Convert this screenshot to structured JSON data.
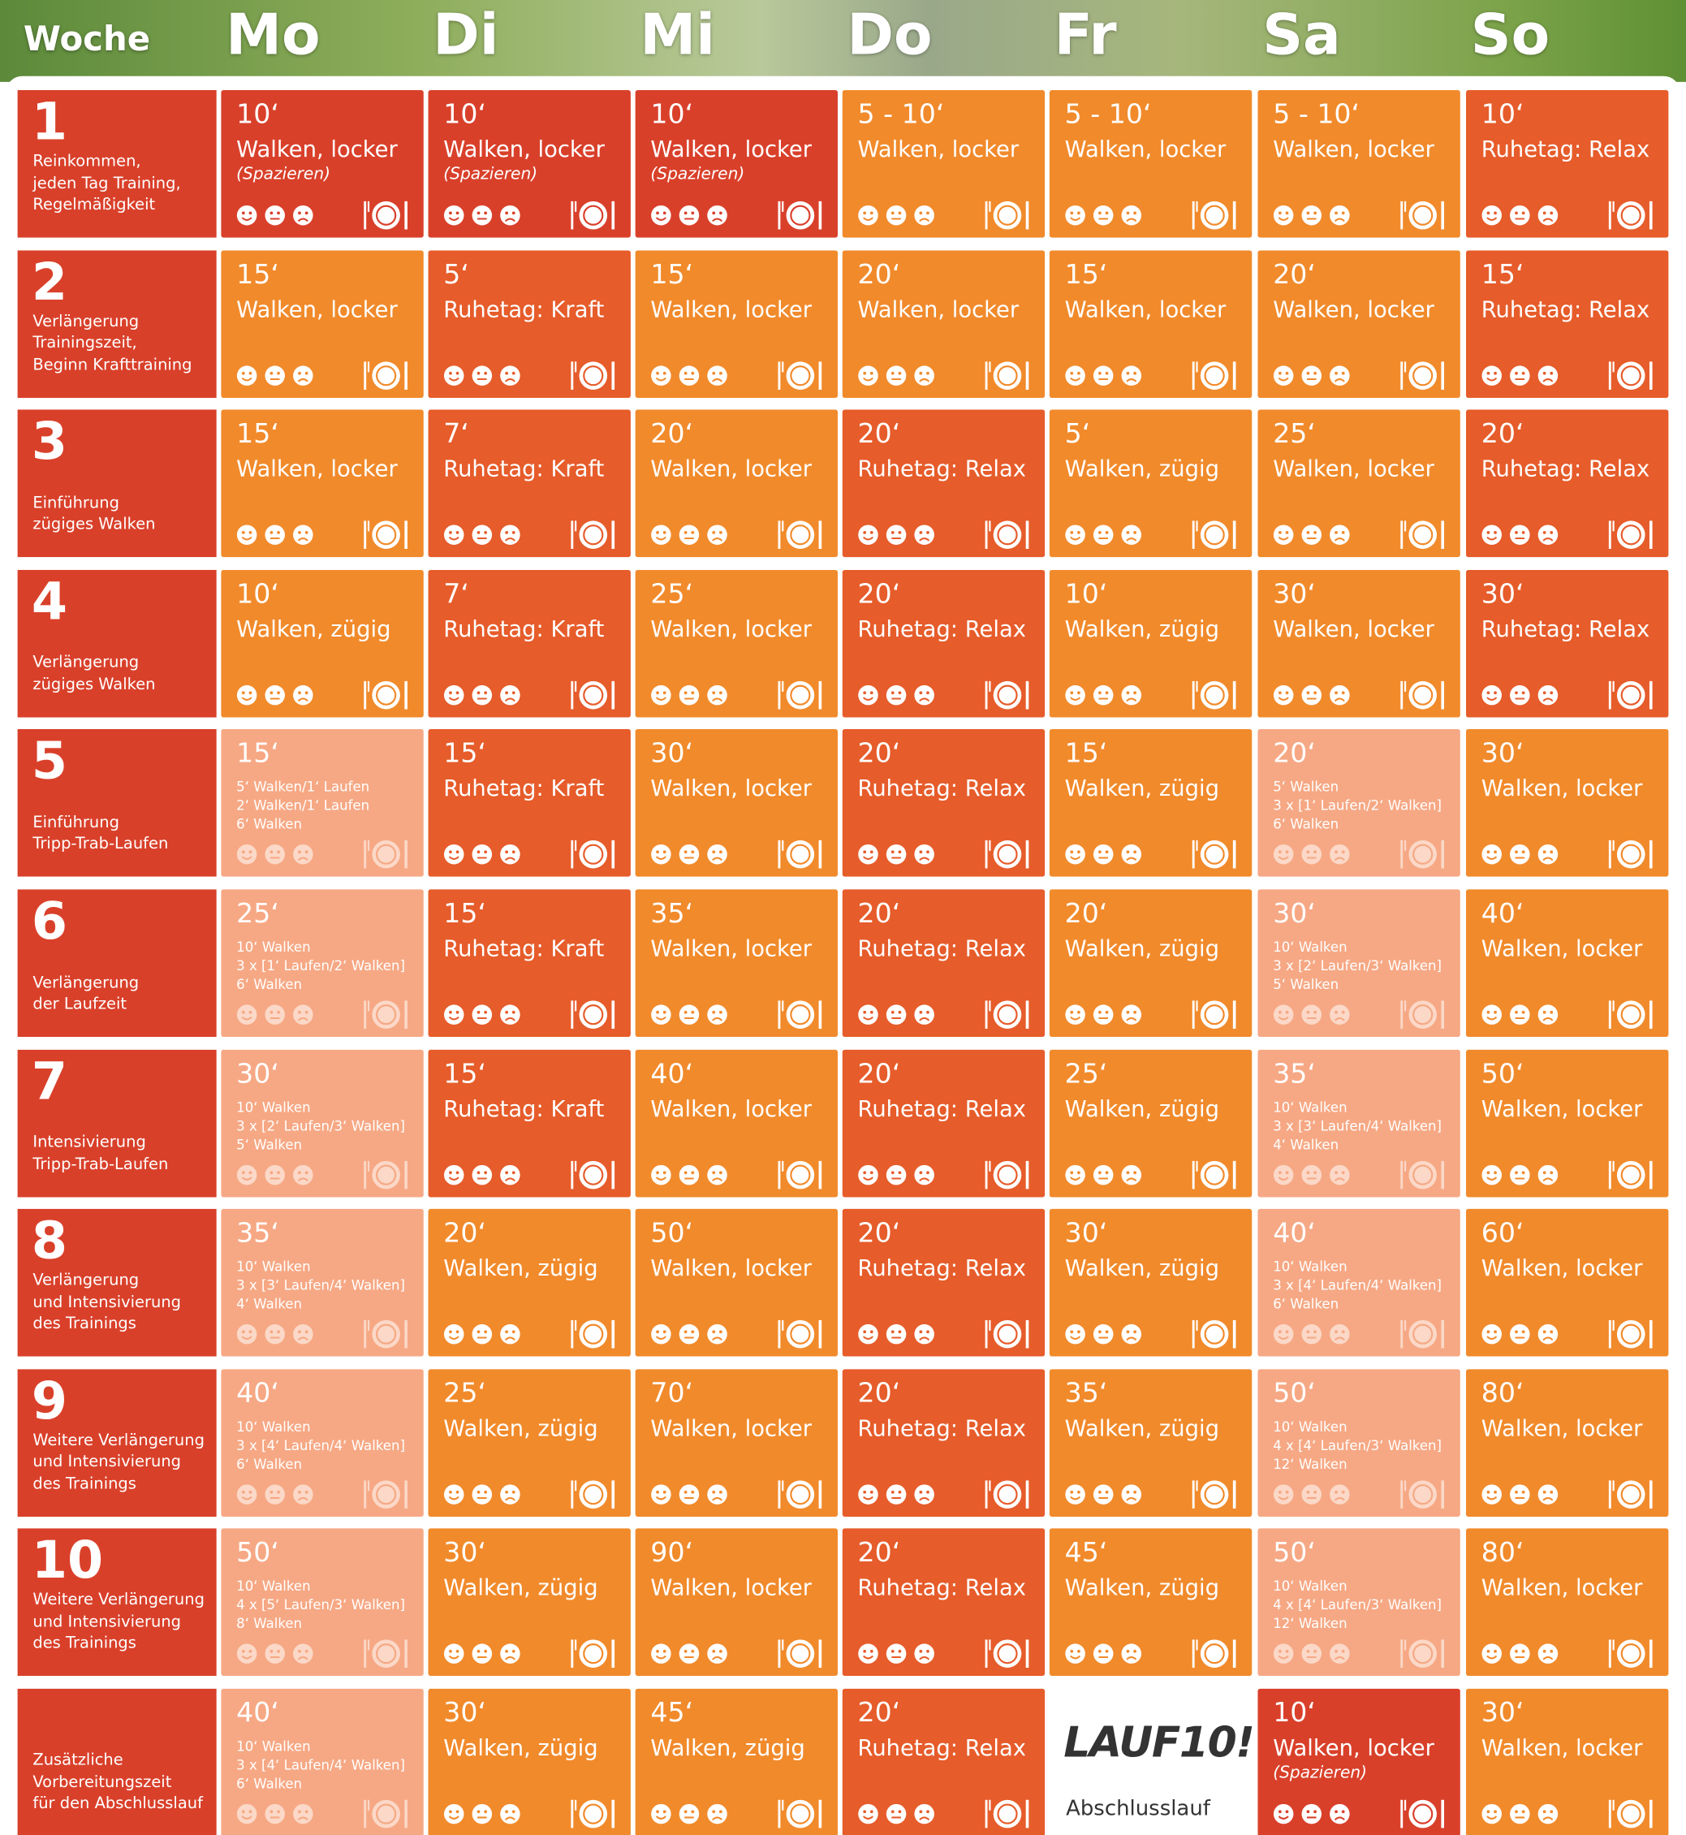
{
  "header": {
    "week_label": "Woche",
    "days": [
      "Mo",
      "Di",
      "Mi",
      "Do",
      "Fr",
      "Sa",
      "So"
    ]
  },
  "weeks": [
    {
      "number": "1",
      "description": [
        "Reinkommen,",
        "jeden Tag Training,",
        "Regelmäßigkeit"
      ],
      "days": [
        {
          "time": "10‘",
          "activity": "Walken, locker",
          "note": "(Spazieren)",
          "color": "#d9402a"
        },
        {
          "time": "10‘",
          "activity": "Walken, locker",
          "note": "(Spazieren)",
          "color": "#d9402a"
        },
        {
          "time": "10‘",
          "activity": "Walken, locker",
          "note": "(Spazieren)",
          "color": "#d9402a"
        },
        {
          "time": "5 - 10‘",
          "activity": "Walken, locker",
          "color": "#f18a2b"
        },
        {
          "time": "5 - 10‘",
          "activity": "Walken, locker",
          "color": "#f18a2b"
        },
        {
          "time": "5 - 10‘",
          "activity": "Walken, locker",
          "color": "#f18a2b"
        },
        {
          "time": "10‘",
          "activity": "Ruhetag: Relax",
          "color": "#e65c2a"
        }
      ]
    },
    {
      "number": "2",
      "description": [
        "Verlängerung",
        "Trainingszeit,",
        "Beginn Krafttraining"
      ],
      "days": [
        {
          "time": "15‘",
          "activity": "Walken, locker",
          "color": "#f18a2b"
        },
        {
          "time": "5‘",
          "activity": "Ruhetag: Kraft",
          "color": "#e65c2a"
        },
        {
          "time": "15‘",
          "activity": "Walken, locker",
          "color": "#f18a2b"
        },
        {
          "time": "20‘",
          "activity": "Walken, locker",
          "color": "#f18a2b"
        },
        {
          "time": "15‘",
          "activity": "Walken, locker",
          "color": "#f18a2b"
        },
        {
          "time": "20‘",
          "activity": "Walken, locker",
          "color": "#f18a2b"
        },
        {
          "time": "15‘",
          "activity": "Ruhetag: Relax",
          "color": "#e65c2a"
        }
      ]
    },
    {
      "number": "3",
      "description": [
        "Einführung",
        "zügiges Walken"
      ],
      "days": [
        {
          "time": "15‘",
          "activity": "Walken, locker",
          "color": "#f18a2b"
        },
        {
          "time": "7‘",
          "activity": "Ruhetag: Kraft",
          "color": "#e65c2a"
        },
        {
          "time": "20‘",
          "activity": "Walken, locker",
          "color": "#f18a2b"
        },
        {
          "time": "20‘",
          "activity": "Ruhetag: Relax",
          "color": "#e65c2a"
        },
        {
          "time": "5‘",
          "activity": "Walken, zügig",
          "color": "#f18a2b"
        },
        {
          "time": "25‘",
          "activity": "Walken, locker",
          "color": "#f18a2b"
        },
        {
          "time": "20‘",
          "activity": "Ruhetag: Relax",
          "color": "#e65c2a"
        }
      ]
    },
    {
      "number": "4",
      "description": [
        "Verlängerung",
        "zügiges Walken"
      ],
      "days": [
        {
          "time": "10‘",
          "activity": "Walken, zügig",
          "color": "#f18a2b"
        },
        {
          "time": "7‘",
          "activity": "Ruhetag: Kraft",
          "color": "#e65c2a"
        },
        {
          "time": "25‘",
          "activity": "Walken, locker",
          "color": "#f18a2b"
        },
        {
          "time": "20‘",
          "activity": "Ruhetag: Relax",
          "color": "#e65c2a"
        },
        {
          "time": "10‘",
          "activity": "Walken, zügig",
          "color": "#f18a2b"
        },
        {
          "time": "30‘",
          "activity": "Walken, locker",
          "color": "#f18a2b"
        },
        {
          "time": "30‘",
          "activity": "Ruhetag: Relax",
          "color": "#e65c2a"
        }
      ]
    },
    {
      "number": "5",
      "description": [
        "Einführung",
        "Tripp-Trab-Laufen"
      ],
      "days": [
        {
          "time": "15‘",
          "details": [
            "5‘ Walken/1‘ Laufen",
            "2‘ Walken/1‘ Laufen",
            "6‘ Walken"
          ],
          "color": "#f6a884"
        },
        {
          "time": "15‘",
          "activity": "Ruhetag: Kraft",
          "color": "#e65c2a"
        },
        {
          "time": "30‘",
          "activity": "Walken, locker",
          "color": "#f18a2b"
        },
        {
          "time": "20‘",
          "activity": "Ruhetag: Relax",
          "color": "#e65c2a"
        },
        {
          "time": "15‘",
          "activity": "Walken, zügig",
          "color": "#f18a2b"
        },
        {
          "time": "20‘",
          "details": [
            "5‘ Walken",
            "3 x [1‘ Laufen/2‘ Walken]",
            "6‘ Walken"
          ],
          "color": "#f6a884"
        },
        {
          "time": "30‘",
          "activity": "Walken, locker",
          "color": "#f18a2b"
        }
      ]
    },
    {
      "number": "6",
      "description": [
        "Verlängerung",
        "der Laufzeit"
      ],
      "days": [
        {
          "time": "25‘",
          "details": [
            "10‘ Walken",
            "3 x [1‘ Laufen/2‘ Walken]",
            "6‘ Walken"
          ],
          "color": "#f6a884"
        },
        {
          "time": "15‘",
          "activity": "Ruhetag: Kraft",
          "color": "#e65c2a"
        },
        {
          "time": "35‘",
          "activity": "Walken, locker",
          "color": "#f18a2b"
        },
        {
          "time": "20‘",
          "activity": "Ruhetag: Relax",
          "color": "#e65c2a"
        },
        {
          "time": "20‘",
          "activity": "Walken, zügig",
          "color": "#f18a2b"
        },
        {
          "time": "30‘",
          "details": [
            "10‘ Walken",
            "3 x [2‘ Laufen/3‘ Walken]",
            "5‘ Walken"
          ],
          "color": "#f6a884"
        },
        {
          "time": "40‘",
          "activity": "Walken, locker",
          "color": "#f18a2b"
        }
      ]
    },
    {
      "number": "7",
      "description": [
        "Intensivierung",
        "Tripp-Trab-Laufen"
      ],
      "days": [
        {
          "time": "30‘",
          "details": [
            "10‘ Walken",
            "3 x [2‘ Laufen/3‘ Walken]",
            "5‘ Walken"
          ],
          "color": "#f6a884"
        },
        {
          "time": "15‘",
          "activity": "Ruhetag: Kraft",
          "color": "#e65c2a"
        },
        {
          "time": "40‘",
          "activity": "Walken, locker",
          "color": "#f18a2b"
        },
        {
          "time": "20‘",
          "activity": "Ruhetag: Relax",
          "color": "#e65c2a"
        },
        {
          "time": "25‘",
          "activity": "Walken, zügig",
          "color": "#f18a2b"
        },
        {
          "time": "35‘",
          "details": [
            "10‘ Walken",
            "3 x [3‘ Laufen/4‘ Walken]",
            "4‘ Walken"
          ],
          "color": "#f6a884"
        },
        {
          "time": "50‘",
          "activity": "Walken, locker",
          "color": "#f18a2b"
        }
      ]
    },
    {
      "number": "8",
      "description": [
        "Verlängerung",
        "und Intensivierung",
        "des Trainings"
      ],
      "days": [
        {
          "time": "35‘",
          "details": [
            "10‘ Walken",
            "3 x [3‘ Laufen/4‘ Walken]",
            "4‘ Walken"
          ],
          "color": "#f6a884"
        },
        {
          "time": "20‘",
          "activity": "Walken, zügig",
          "color": "#f18a2b"
        },
        {
          "time": "50‘",
          "activity": "Walken, locker",
          "color": "#f18a2b"
        },
        {
          "time": "20‘",
          "activity": "Ruhetag: Relax",
          "color": "#e65c2a"
        },
        {
          "time": "30‘",
          "activity": "Walken, zügig",
          "color": "#f18a2b"
        },
        {
          "time": "40‘",
          "details": [
            "10‘ Walken",
            "3 x [4‘ Laufen/4‘ Walken]",
            "6‘ Walken"
          ],
          "color": "#f6a884"
        },
        {
          "time": "60‘",
          "activity": "Walken, locker",
          "color": "#f18a2b"
        }
      ]
    },
    {
      "number": "9",
      "description": [
        "Weitere Verlängerung",
        "und Intensivierung",
        "des Trainings"
      ],
      "days": [
        {
          "time": "40‘",
          "details": [
            "10‘ Walken",
            "3 x [4‘ Laufen/4‘ Walken]",
            "6‘ Walken"
          ],
          "color": "#f6a884"
        },
        {
          "time": "25‘",
          "activity": "Walken, zügig",
          "color": "#f18a2b"
        },
        {
          "time": "70‘",
          "activity": "Walken, locker",
          "color": "#f18a2b"
        },
        {
          "time": "20‘",
          "activity": "Ruhetag: Relax",
          "color": "#e65c2a"
        },
        {
          "time": "35‘",
          "activity": "Walken, zügig",
          "color": "#f18a2b"
        },
        {
          "time": "50‘",
          "details": [
            "10‘ Walken",
            "4 x [4‘ Laufen/3‘ Walken]",
            "12‘ Walken"
          ],
          "color": "#f6a884"
        },
        {
          "time": "80‘",
          "activity": "Walken, locker",
          "color": "#f18a2b"
        }
      ]
    },
    {
      "number": "10",
      "description": [
        "Weitere Verlängerung",
        "und Intensivierung",
        "des Trainings"
      ],
      "days": [
        {
          "time": "50‘",
          "details": [
            "10‘ Walken",
            "4 x [5‘ Laufen/3‘ Walken]",
            "8‘ Walken"
          ],
          "color": "#f6a884"
        },
        {
          "time": "30‘",
          "activity": "Walken, zügig",
          "color": "#f18a2b"
        },
        {
          "time": "90‘",
          "activity": "Walken, locker",
          "color": "#f18a2b"
        },
        {
          "time": "20‘",
          "activity": "Ruhetag: Relax",
          "color": "#e65c2a"
        },
        {
          "time": "45‘",
          "activity": "Walken, zügig",
          "color": "#f18a2b"
        },
        {
          "time": "50‘",
          "details": [
            "10‘ Walken",
            "4 x [4‘ Laufen/3‘ Walken]",
            "12‘ Walken"
          ],
          "color": "#f6a884"
        },
        {
          "time": "80‘",
          "activity": "Walken, locker",
          "color": "#f18a2b"
        }
      ]
    },
    {
      "description": [
        "Zusätzliche",
        "Vorbereitungszeit",
        "für den Abschlusslauf"
      ],
      "days": [
        {
          "time": "40‘",
          "details": [
            "10‘ Walken",
            "3 x [4‘ Laufen/4‘ Walken]",
            "6‘ Walken"
          ],
          "color": "#f6a884"
        },
        {
          "time": "30‘",
          "activity": "Walken, zügig",
          "color": "#f18a2b"
        },
        {
          "time": "45‘",
          "activity": "Walken, zügig",
          "color": "#f18a2b"
        },
        {
          "time": "20‘",
          "activity": "Ruhetag: Relax",
          "color": "#e65c2a"
        },
        {
          "logo": "LAUF10!",
          "activity": "Abschlusslauf",
          "color": "#ffffff"
        },
        {
          "time": "10‘",
          "activity": "Walken, locker",
          "note": "(Spazieren)",
          "color": "#d9402a"
        },
        {
          "time": "30‘",
          "activity": "Walken, locker",
          "color": "#f18a2b"
        }
      ]
    }
  ]
}
